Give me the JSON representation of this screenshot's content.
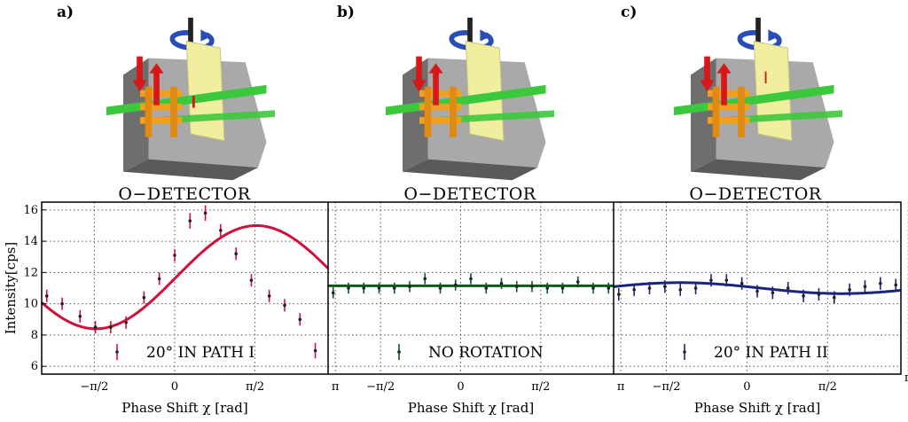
{
  "panels": [
    {
      "letter": "a)",
      "detector": "O−DETECTOR",
      "legend": "20° IN PATH I"
    },
    {
      "letter": "b)",
      "detector": "O−DETECTOR",
      "legend": "NO ROTATION"
    },
    {
      "letter": "c)",
      "detector": "O−DETECTOR",
      "legend": "20° IN PATH II"
    }
  ],
  "axes": {
    "ylabel": "Intensity[cps]",
    "xlabel": "Phase Shift χ [rad]",
    "yticks": [
      "16",
      "14",
      "12",
      "10",
      "8",
      "6"
    ],
    "xticks": [
      "−π/2",
      "0",
      "π/2",
      "π"
    ]
  },
  "colors": {
    "panel_a": "#d0103a",
    "panel_b": "#0b5a1c",
    "panel_c": "#1a237e",
    "setup_yellow": "#f2eea0",
    "setup_gray": "#8a8a8a",
    "beam_green": "#3cc83c",
    "arrow_red": "#d81818",
    "rotate_blue": "#2a4eb8"
  },
  "chart_data": [
    {
      "type": "scatter",
      "title": "O−DETECTOR",
      "legend": "20° IN PATH I",
      "xlabel": "Phase Shift χ [rad]",
      "ylabel": "Intensity[cps]",
      "xlim": [
        -2.6,
        3.0
      ],
      "ylim": [
        5.5,
        16.5
      ],
      "x": [
        -2.5,
        -2.2,
        -1.85,
        -1.55,
        -1.25,
        -0.95,
        -0.6,
        -0.3,
        0.0,
        0.3,
        0.6,
        0.9,
        1.2,
        1.5,
        1.85,
        2.15,
        2.45,
        2.75
      ],
      "y": [
        10.5,
        10.0,
        9.2,
        8.5,
        8.5,
        8.8,
        10.4,
        11.6,
        13.1,
        15.3,
        15.8,
        14.7,
        13.2,
        11.5,
        10.5,
        9.9,
        9.0,
        7.0
      ],
      "err": [
        0.4,
        0.4,
        0.4,
        0.4,
        0.4,
        0.4,
        0.4,
        0.4,
        0.4,
        0.5,
        0.5,
        0.4,
        0.4,
        0.4,
        0.4,
        0.4,
        0.4,
        0.5
      ],
      "fit": {
        "mean": 11.7,
        "amplitude": 3.3,
        "phase": 1.6
      }
    },
    {
      "type": "scatter",
      "title": "O−DETECTOR",
      "legend": "NO ROTATION",
      "xlabel": "Phase Shift χ [rad]",
      "ylabel": "Intensity[cps]",
      "xlim": [
        -2.6,
        3.0
      ],
      "ylim": [
        5.5,
        16.5
      ],
      "x": [
        -2.5,
        -2.2,
        -1.9,
        -1.6,
        -1.3,
        -1.0,
        -0.7,
        -0.4,
        -0.1,
        0.2,
        0.5,
        0.8,
        1.1,
        1.4,
        1.7,
        2.0,
        2.3,
        2.6,
        2.9
      ],
      "y": [
        10.7,
        11.0,
        11.0,
        11.0,
        11.0,
        11.1,
        11.6,
        11.0,
        11.2,
        11.6,
        11.0,
        11.3,
        11.1,
        11.1,
        11.0,
        11.0,
        11.4,
        11.0,
        11.0
      ],
      "err": [
        0.35,
        0.35,
        0.35,
        0.35,
        0.35,
        0.35,
        0.35,
        0.35,
        0.35,
        0.35,
        0.35,
        0.35,
        0.35,
        0.35,
        0.35,
        0.35,
        0.35,
        0.35,
        0.35
      ],
      "fit": {
        "mean": 11.15,
        "amplitude": 0.0,
        "phase": 0
      }
    },
    {
      "type": "scatter",
      "title": "O−DETECTOR",
      "legend": "20° IN PATH II",
      "xlabel": "Phase Shift χ [rad]",
      "ylabel": "Intensity[cps]",
      "xlim": [
        -2.6,
        3.0
      ],
      "ylim": [
        5.5,
        16.5
      ],
      "x": [
        -2.5,
        -2.2,
        -1.9,
        -1.6,
        -1.3,
        -1.0,
        -0.7,
        -0.4,
        -0.1,
        0.2,
        0.5,
        0.8,
        1.1,
        1.4,
        1.7,
        2.0,
        2.3,
        2.6,
        2.9
      ],
      "y": [
        10.6,
        10.9,
        11.0,
        11.1,
        10.9,
        11.0,
        11.5,
        11.5,
        11.3,
        10.8,
        10.7,
        11.0,
        10.5,
        10.6,
        10.4,
        10.9,
        11.1,
        11.3,
        11.2
      ],
      "err": [
        0.4,
        0.4,
        0.4,
        0.4,
        0.4,
        0.4,
        0.4,
        0.4,
        0.4,
        0.4,
        0.4,
        0.4,
        0.4,
        0.4,
        0.4,
        0.4,
        0.4,
        0.4,
        0.4
      ],
      "fit": {
        "mean": 11.0,
        "amplitude": 0.35,
        "phase": -1.3
      }
    }
  ]
}
